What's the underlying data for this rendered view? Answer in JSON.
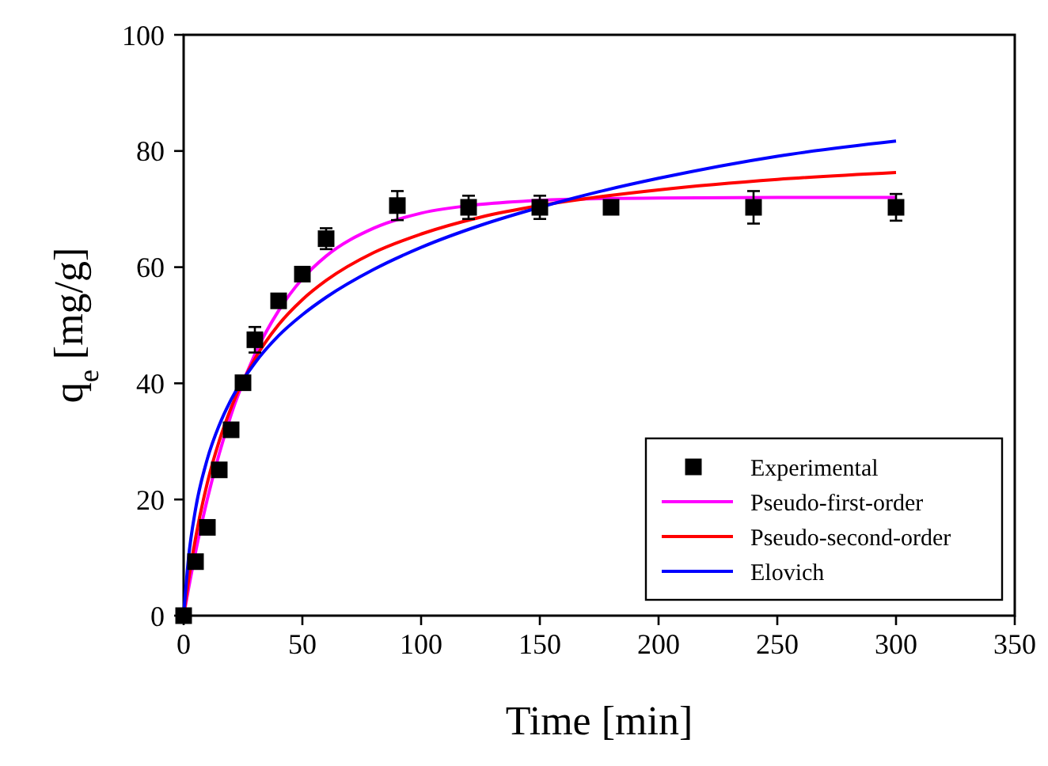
{
  "chart_data": {
    "type": "line",
    "xlabel": "Time [min]",
    "ylabel": "q$_{e}$ [mg/g]",
    "xlim": [
      0,
      350
    ],
    "ylim": [
      0,
      100
    ],
    "xticks": [
      0,
      50,
      100,
      150,
      200,
      250,
      300,
      350
    ],
    "yticks": [
      0,
      20,
      40,
      60,
      80,
      100
    ],
    "grid": false,
    "legend": "bottom right",
    "series": [
      {
        "name": "Experimental",
        "type": "scatter",
        "marker": "square",
        "color": "#000000",
        "x": [
          0,
          5,
          10,
          15,
          20,
          25,
          30,
          40,
          50,
          60,
          90,
          120,
          150,
          180,
          240,
          300
        ],
        "values": [
          0,
          9.3,
          15.2,
          25.1,
          32,
          40.1,
          47.5,
          54.2,
          58.8,
          64.9,
          70.6,
          70.3,
          70.3,
          70.3,
          70.3,
          70.3
        ],
        "errors": [
          null,
          null,
          null,
          null,
          null,
          null,
          2.2,
          null,
          null,
          1.8,
          2.5,
          2,
          2,
          1,
          2.8,
          2.3
        ]
      },
      {
        "name": "Pseudo-first-order",
        "color": "#ff00ff",
        "x": [
          0,
          2,
          5,
          10,
          15,
          20,
          30,
          40,
          50,
          60,
          80,
          100,
          125,
          150,
          175,
          200,
          250,
          300
        ],
        "values": [
          0,
          4.5,
          10.9,
          20.1,
          27.9,
          34.6,
          45,
          52.5,
          58,
          61.9,
          66.7,
          69.3,
          70.8,
          71.5,
          71.8,
          71.9,
          72,
          72
        ]
      },
      {
        "name": "Pseudo-second-order",
        "color": "#ff0000",
        "x": [
          0,
          2,
          5,
          10,
          15,
          20,
          30,
          40,
          50,
          60,
          80,
          100,
          125,
          150,
          175,
          200,
          250,
          300
        ],
        "values": [
          0,
          5.9,
          13.3,
          22.9,
          30.1,
          35.8,
          44.2,
          50.1,
          54.4,
          57.7,
          62.5,
          65.7,
          68.6,
          70.6,
          72.1,
          73.3,
          75.1,
          76.3
        ]
      },
      {
        "name": "Elovich",
        "color": "#0000ff",
        "x": [
          0,
          2,
          5,
          10,
          15,
          20,
          30,
          40,
          50,
          60,
          80,
          100,
          125,
          150,
          175,
          200,
          250,
          300
        ],
        "values": [
          0,
          9.7,
          18.3,
          27,
          32.8,
          37.2,
          43.5,
          48.2,
          51.8,
          54.8,
          59.6,
          63.4,
          67.2,
          70.3,
          73,
          75.3,
          79.1,
          81.7
        ]
      }
    ]
  }
}
